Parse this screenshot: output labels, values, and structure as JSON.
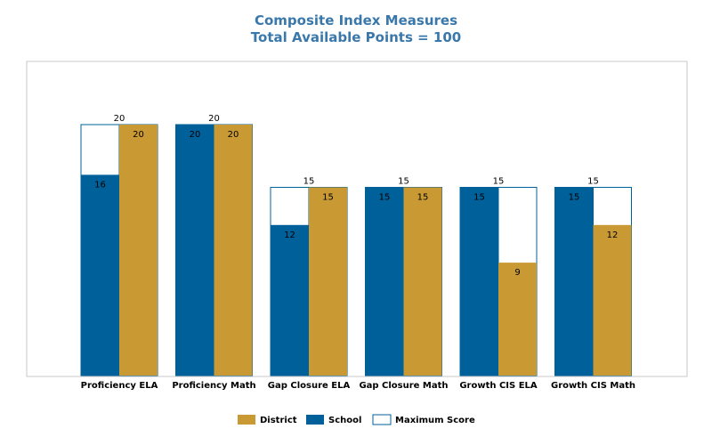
{
  "chart_data": {
    "type": "bar",
    "title": "Composite Index Measures",
    "subtitle": "Total Available Points = 100",
    "categories": [
      "Proficiency ELA",
      "Proficiency Math",
      "Gap Closure ELA",
      "Gap Closure Math",
      "Growth CIS ELA",
      "Growth CIS Math"
    ],
    "series": [
      {
        "name": "School",
        "values": [
          16,
          20,
          12,
          15,
          15,
          15
        ],
        "color": "#00609a"
      },
      {
        "name": "District",
        "values": [
          20,
          20,
          15,
          15,
          9,
          12
        ],
        "color": "#c99a34"
      }
    ],
    "maximum_score": {
      "name": "Maximum Score",
      "values": [
        20,
        20,
        15,
        15,
        15,
        15
      ],
      "color": "#ffffff"
    },
    "ylim": [
      0,
      27
    ],
    "grid": false,
    "legend": {
      "position": "bottom",
      "items": [
        {
          "label": "District",
          "color": "#c99a34"
        },
        {
          "label": "School",
          "color": "#00609a"
        },
        {
          "label": "Maximum Score",
          "color": "#ffffff"
        }
      ]
    },
    "xlabel": "",
    "ylabel": ""
  }
}
